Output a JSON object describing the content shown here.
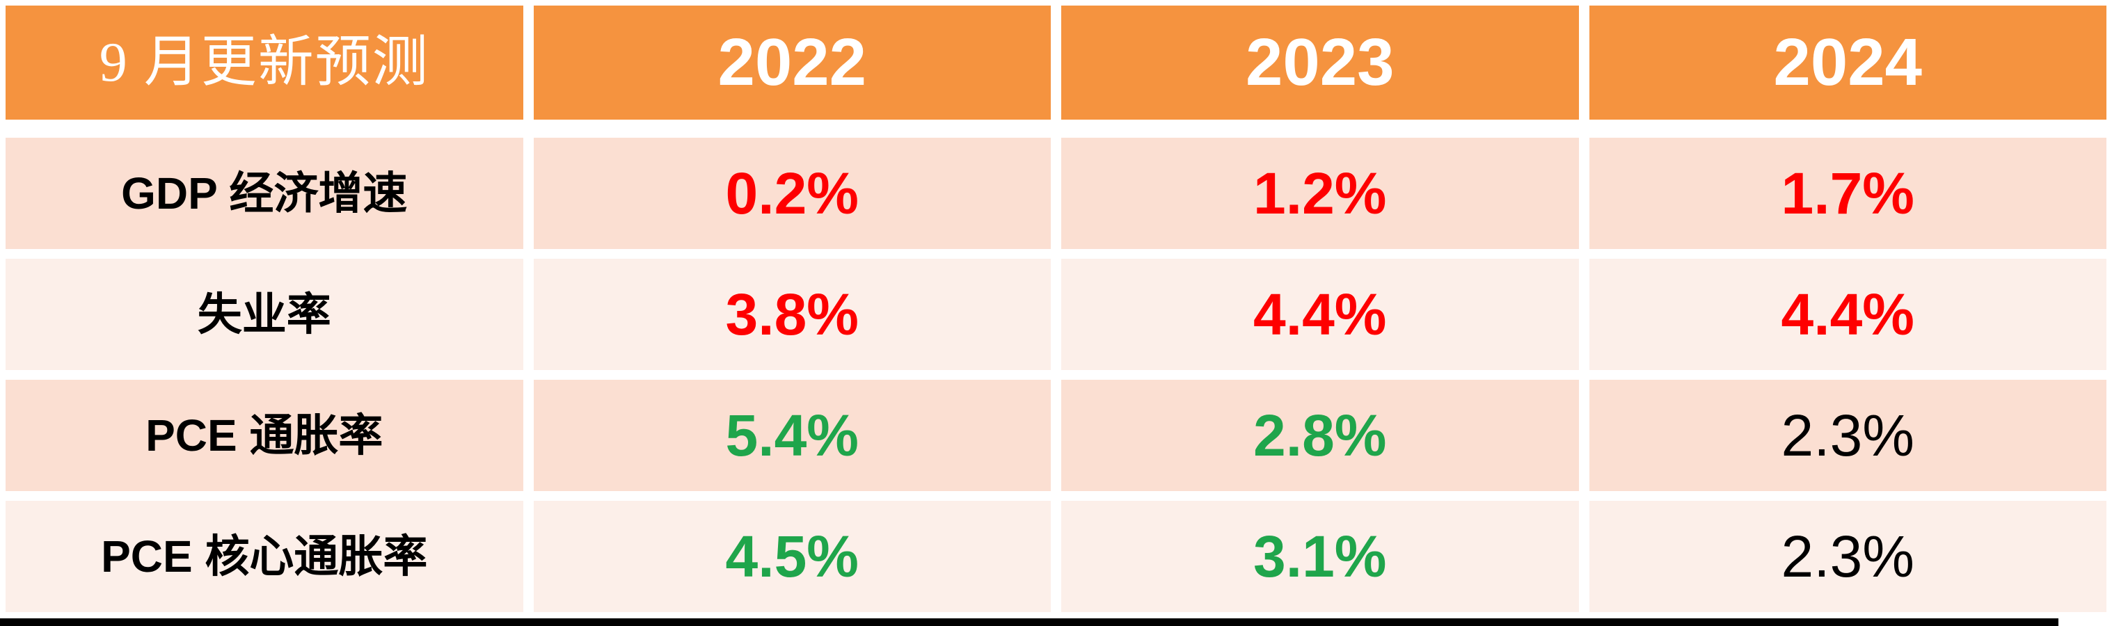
{
  "chart_data": {
    "type": "table",
    "title": "9 月更新预测",
    "columns": [
      "9 月更新预测",
      "2022",
      "2023",
      "2024"
    ],
    "rows": [
      {
        "label": "GDP 经济增速",
        "values": [
          "0.2%",
          "1.2%",
          "1.7%"
        ],
        "value_colors": [
          "red",
          "red",
          "red"
        ]
      },
      {
        "label": "失业率",
        "values": [
          "3.8%",
          "4.4%",
          "4.4%"
        ],
        "value_colors": [
          "red",
          "red",
          "red"
        ]
      },
      {
        "label": "PCE 通胀率",
        "values": [
          "5.4%",
          "2.8%",
          "2.3%"
        ],
        "value_colors": [
          "green",
          "green",
          "black"
        ]
      },
      {
        "label": "PCE 核心通胀率",
        "values": [
          "4.5%",
          "3.1%",
          "2.3%"
        ],
        "value_colors": [
          "green",
          "green",
          "black"
        ]
      }
    ]
  },
  "table": {
    "header": {
      "label": "9 月更新预测",
      "years": [
        "2022",
        "2023",
        "2024"
      ]
    },
    "rows": [
      {
        "label": "GDP 经济增速",
        "values": [
          {
            "text": "0.2%",
            "color": "red"
          },
          {
            "text": "1.2%",
            "color": "red"
          },
          {
            "text": "1.7%",
            "color": "red"
          }
        ]
      },
      {
        "label": "失业率",
        "values": [
          {
            "text": "3.8%",
            "color": "red"
          },
          {
            "text": "4.4%",
            "color": "red"
          },
          {
            "text": "4.4%",
            "color": "red"
          }
        ]
      },
      {
        "label": "PCE 通胀率",
        "values": [
          {
            "text": "5.4%",
            "color": "green"
          },
          {
            "text": "2.8%",
            "color": "green"
          },
          {
            "text": "2.3%",
            "color": "black"
          }
        ]
      },
      {
        "label": "PCE 核心通胀率",
        "values": [
          {
            "text": "4.5%",
            "color": "green"
          },
          {
            "text": "3.1%",
            "color": "green"
          },
          {
            "text": "2.3%",
            "color": "black"
          }
        ]
      }
    ]
  },
  "colors": {
    "header_bg": "#f5933f",
    "header_text": "#ffffff",
    "row_bg_dark": "#fbdfd2",
    "row_bg_light": "#fcefe9",
    "value_red": "#fe0000",
    "value_green": "#1fa54b",
    "value_black": "#000000",
    "bar_black": "#000000"
  }
}
